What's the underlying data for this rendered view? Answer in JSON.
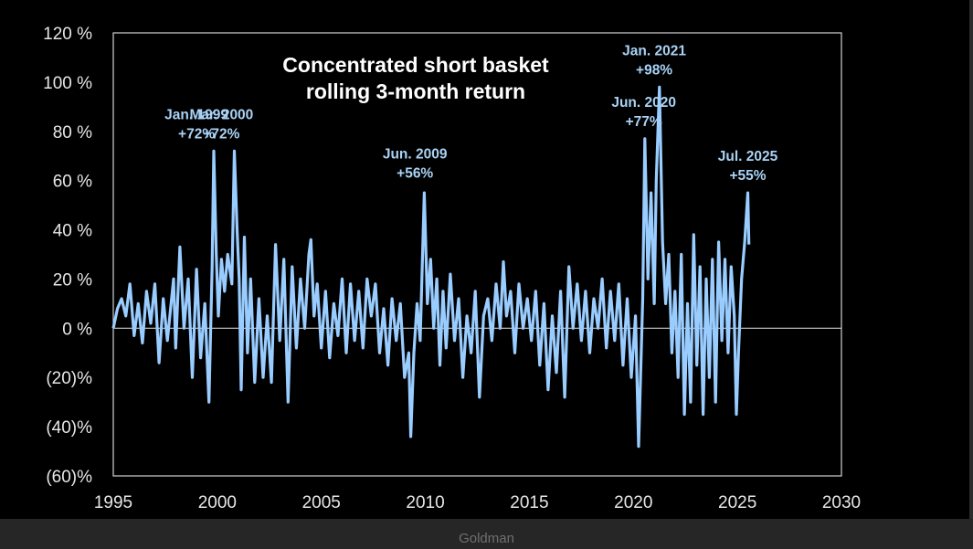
{
  "caption": "Goldman",
  "colors": {
    "background": "#000000",
    "series": "#99ccff",
    "frame": "#d0d0d0",
    "caption_bar": "#262626"
  },
  "chart_data": {
    "type": "line",
    "title_lines": [
      "Concentrated short basket",
      "rolling 3-month return"
    ],
    "xlabel": "",
    "ylabel": "",
    "xlim": [
      1995,
      2030
    ],
    "ylim": [
      -60,
      120
    ],
    "x_ticks": [
      1995,
      2000,
      2005,
      2010,
      2015,
      2020,
      2025,
      2030
    ],
    "x_tick_labels": [
      "1995",
      "2000",
      "2005",
      "2010",
      "2015",
      "2020",
      "2025",
      "2030"
    ],
    "y_ticks": [
      -60,
      -40,
      -20,
      0,
      20,
      40,
      60,
      80,
      100,
      120
    ],
    "y_tick_labels": [
      "(60)%",
      "(40)%",
      "(20)%",
      "0 %",
      "20 %",
      "40 %",
      "60 %",
      "80 %",
      "100 %",
      "120 %"
    ],
    "grid": false,
    "zero_line": true,
    "series": [
      {
        "values_unit": "percent",
        "points": [
          [
            1995.0,
            0
          ],
          [
            1995.2,
            8
          ],
          [
            1995.4,
            12
          ],
          [
            1995.6,
            5
          ],
          [
            1995.8,
            18
          ],
          [
            1996.0,
            -3
          ],
          [
            1996.2,
            10
          ],
          [
            1996.4,
            -6
          ],
          [
            1996.6,
            15
          ],
          [
            1996.8,
            2
          ],
          [
            1997.0,
            18
          ],
          [
            1997.2,
            -14
          ],
          [
            1997.4,
            12
          ],
          [
            1997.6,
            -5
          ],
          [
            1997.9,
            20
          ],
          [
            1998.0,
            -8
          ],
          [
            1998.2,
            33
          ],
          [
            1998.4,
            0
          ],
          [
            1998.6,
            20
          ],
          [
            1998.8,
            -20
          ],
          [
            1999.0,
            24
          ],
          [
            1999.2,
            -12
          ],
          [
            1999.4,
            10
          ],
          [
            1999.6,
            -30
          ],
          [
            1999.75,
            25
          ],
          [
            1999.83,
            72
          ],
          [
            1999.95,
            30
          ],
          [
            2000.05,
            5
          ],
          [
            2000.2,
            28
          ],
          [
            2000.35,
            15
          ],
          [
            2000.5,
            30
          ],
          [
            2000.7,
            18
          ],
          [
            2000.82,
            72
          ],
          [
            2000.95,
            40
          ],
          [
            2001.05,
            20
          ],
          [
            2001.15,
            -25
          ],
          [
            2001.3,
            37
          ],
          [
            2001.45,
            -10
          ],
          [
            2001.6,
            20
          ],
          [
            2001.8,
            -22
          ],
          [
            2002.0,
            12
          ],
          [
            2002.2,
            -20
          ],
          [
            2002.4,
            5
          ],
          [
            2002.6,
            -22
          ],
          [
            2002.8,
            34
          ],
          [
            2003.0,
            -5
          ],
          [
            2003.2,
            28
          ],
          [
            2003.4,
            -30
          ],
          [
            2003.6,
            25
          ],
          [
            2003.8,
            -8
          ],
          [
            2004.0,
            20
          ],
          [
            2004.2,
            0
          ],
          [
            2004.4,
            30
          ],
          [
            2004.5,
            36
          ],
          [
            2004.65,
            5
          ],
          [
            2004.8,
            18
          ],
          [
            2005.0,
            -8
          ],
          [
            2005.2,
            15
          ],
          [
            2005.4,
            -12
          ],
          [
            2005.6,
            10
          ],
          [
            2005.8,
            -3
          ],
          [
            2006.0,
            20
          ],
          [
            2006.2,
            -10
          ],
          [
            2006.4,
            18
          ],
          [
            2006.6,
            -5
          ],
          [
            2006.8,
            15
          ],
          [
            2007.0,
            -8
          ],
          [
            2007.2,
            20
          ],
          [
            2007.4,
            5
          ],
          [
            2007.6,
            18
          ],
          [
            2007.8,
            -10
          ],
          [
            2008.0,
            8
          ],
          [
            2008.2,
            -15
          ],
          [
            2008.4,
            12
          ],
          [
            2008.6,
            -5
          ],
          [
            2008.8,
            10
          ],
          [
            2009.0,
            -20
          ],
          [
            2009.2,
            -10
          ],
          [
            2009.3,
            -44
          ],
          [
            2009.45,
            -10
          ],
          [
            2009.6,
            10
          ],
          [
            2009.75,
            -5
          ],
          [
            2009.95,
            55
          ],
          [
            2010.1,
            10
          ],
          [
            2010.25,
            28
          ],
          [
            2010.4,
            0
          ],
          [
            2010.55,
            20
          ],
          [
            2010.7,
            -15
          ],
          [
            2010.85,
            15
          ],
          [
            2011.0,
            -8
          ],
          [
            2011.2,
            22
          ],
          [
            2011.4,
            -5
          ],
          [
            2011.6,
            12
          ],
          [
            2011.8,
            -20
          ],
          [
            2012.0,
            5
          ],
          [
            2012.2,
            -10
          ],
          [
            2012.4,
            15
          ],
          [
            2012.6,
            -28
          ],
          [
            2012.8,
            5
          ],
          [
            2013.0,
            12
          ],
          [
            2013.2,
            -5
          ],
          [
            2013.4,
            18
          ],
          [
            2013.6,
            0
          ],
          [
            2013.75,
            27
          ],
          [
            2013.9,
            5
          ],
          [
            2014.1,
            15
          ],
          [
            2014.3,
            -10
          ],
          [
            2014.5,
            18
          ],
          [
            2014.7,
            0
          ],
          [
            2014.9,
            12
          ],
          [
            2015.1,
            -5
          ],
          [
            2015.3,
            15
          ],
          [
            2015.5,
            -15
          ],
          [
            2015.7,
            10
          ],
          [
            2015.9,
            -25
          ],
          [
            2016.1,
            5
          ],
          [
            2016.3,
            -18
          ],
          [
            2016.5,
            15
          ],
          [
            2016.7,
            -28
          ],
          [
            2016.9,
            25
          ],
          [
            2017.1,
            0
          ],
          [
            2017.3,
            18
          ],
          [
            2017.5,
            -5
          ],
          [
            2017.7,
            15
          ],
          [
            2017.9,
            -10
          ],
          [
            2018.1,
            12
          ],
          [
            2018.3,
            0
          ],
          [
            2018.5,
            20
          ],
          [
            2018.7,
            -8
          ],
          [
            2018.9,
            15
          ],
          [
            2019.1,
            -5
          ],
          [
            2019.3,
            18
          ],
          [
            2019.5,
            -15
          ],
          [
            2019.7,
            12
          ],
          [
            2019.9,
            -20
          ],
          [
            2020.1,
            5
          ],
          [
            2020.25,
            -48
          ],
          [
            2020.45,
            12
          ],
          [
            2020.55,
            77
          ],
          [
            2020.7,
            20
          ],
          [
            2020.85,
            55
          ],
          [
            2021.0,
            10
          ],
          [
            2021.1,
            60
          ],
          [
            2021.25,
            98
          ],
          [
            2021.4,
            35
          ],
          [
            2021.55,
            10
          ],
          [
            2021.7,
            30
          ],
          [
            2021.85,
            -10
          ],
          [
            2022.0,
            15
          ],
          [
            2022.15,
            -20
          ],
          [
            2022.3,
            30
          ],
          [
            2022.45,
            -35
          ],
          [
            2022.6,
            10
          ],
          [
            2022.75,
            -30
          ],
          [
            2022.9,
            38
          ],
          [
            2023.05,
            -15
          ],
          [
            2023.2,
            25
          ],
          [
            2023.35,
            -35
          ],
          [
            2023.5,
            20
          ],
          [
            2023.65,
            -20
          ],
          [
            2023.8,
            28
          ],
          [
            2023.95,
            -30
          ],
          [
            2024.1,
            35
          ],
          [
            2024.25,
            -5
          ],
          [
            2024.4,
            28
          ],
          [
            2024.55,
            -10
          ],
          [
            2024.7,
            25
          ],
          [
            2024.85,
            5
          ],
          [
            2024.95,
            -35
          ],
          [
            2025.05,
            -10
          ],
          [
            2025.2,
            20
          ],
          [
            2025.35,
            35
          ],
          [
            2025.5,
            55
          ],
          [
            2025.55,
            34
          ]
        ]
      }
    ],
    "annotations": [
      {
        "lines": [
          "Jan. 1999",
          "+72%"
        ],
        "x": 1999.0,
        "y": 72
      },
      {
        "lines": [
          "Mar. 2000",
          "+72%"
        ],
        "x": 2000.2,
        "y": 72
      },
      {
        "lines": [
          "Jun. 2009",
          "+56%"
        ],
        "x": 2009.5,
        "y": 56
      },
      {
        "lines": [
          "Jun. 2020",
          "+77%"
        ],
        "x": 2020.5,
        "y": 77
      },
      {
        "lines": [
          "Jan. 2021",
          "+98%"
        ],
        "x": 2021.0,
        "y": 98
      },
      {
        "lines": [
          "Jul. 2025",
          "+55%"
        ],
        "x": 2025.5,
        "y": 55
      }
    ]
  }
}
